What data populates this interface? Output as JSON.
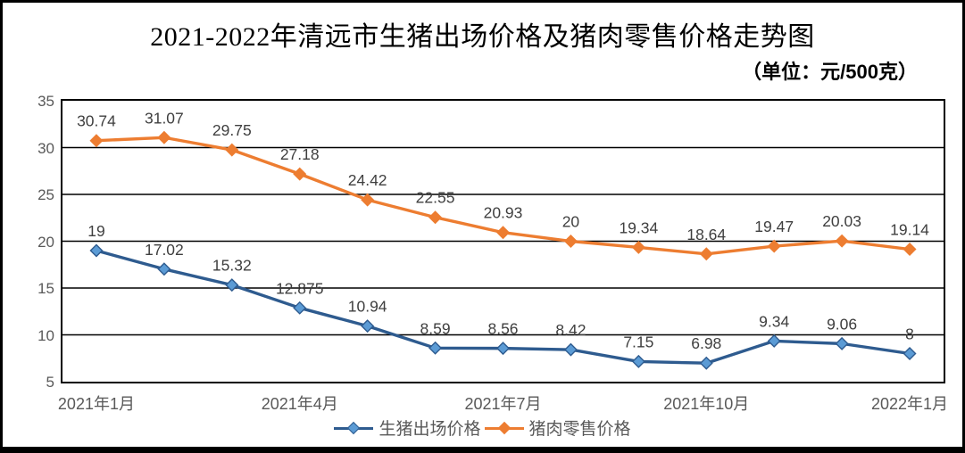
{
  "chart": {
    "title": "2021-2022年清远市生猪出场价格及猪肉零售价格走势图",
    "unit_label": "（单位：元/500克）"
  },
  "chart_data": {
    "type": "line",
    "title": "2021-2022年清远市生猪出场价格及猪肉零售价格走势图",
    "unit": "元/500克",
    "n_points": 13,
    "x_tick_labels": [
      "2021年1月",
      "2021年4月",
      "2021年7月",
      "2021年10月",
      "2022年1月"
    ],
    "x_tick_indices": [
      0,
      3,
      6,
      9,
      12
    ],
    "ylim": [
      5,
      35
    ],
    "yticks": [
      35,
      30,
      25,
      20,
      15,
      10,
      5
    ],
    "grid": true,
    "legend_position": "bottom",
    "series": [
      {
        "name": "生猪出场价格",
        "line_color": "#2E5B8F",
        "marker_fill": "#5B9BD5",
        "values": [
          19,
          17.02,
          15.32,
          12.875,
          10.94,
          8.59,
          8.56,
          8.42,
          7.15,
          6.98,
          9.34,
          9.06,
          8
        ]
      },
      {
        "name": "猪肉零售价格",
        "line_color": "#ED7D31",
        "marker_fill": "#ED7D31",
        "values": [
          30.74,
          31.07,
          29.75,
          27.18,
          24.42,
          22.55,
          20.93,
          20,
          19.34,
          18.64,
          19.47,
          20.03,
          19.14
        ]
      }
    ],
    "data_label_color": "#3f3f3f",
    "gridline_color": "#000000"
  }
}
